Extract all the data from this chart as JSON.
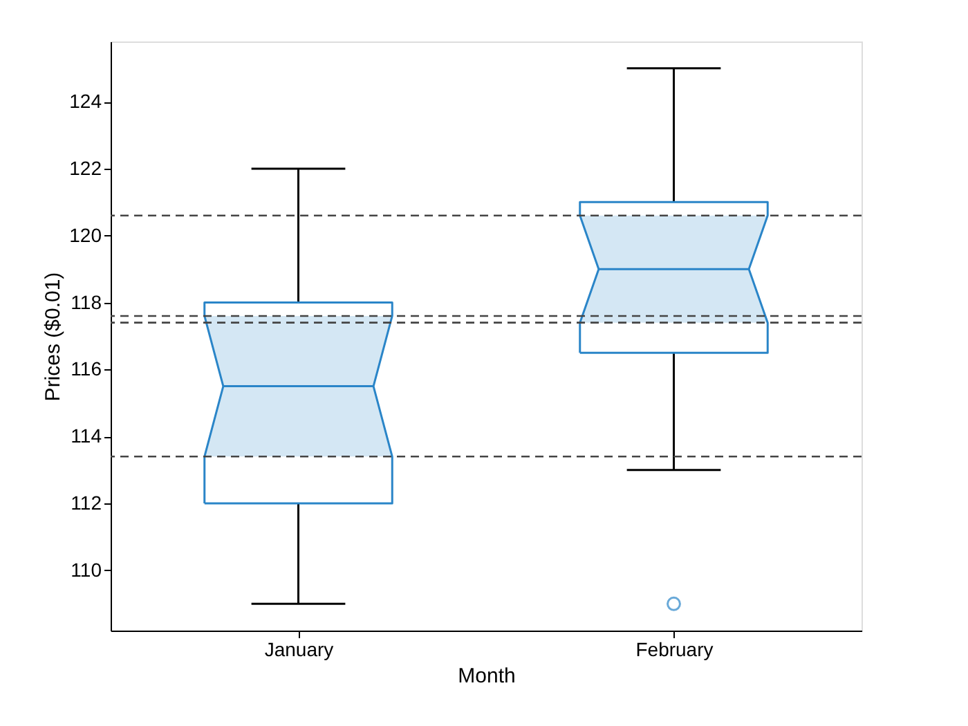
{
  "chart_data": {
    "type": "box",
    "xlabel": "Month",
    "ylabel": "Prices ($0.01)",
    "categories": [
      "January",
      "February"
    ],
    "series": [
      {
        "color": "#2a85c8",
        "boxes": [
          {
            "low": 109,
            "q1": 112,
            "median": 115.5,
            "q3": 118,
            "high": 122
          },
          {
            "low": 113,
            "q1": 116.5,
            "median": 119,
            "q3": 121,
            "high": 125,
            "outliers": [
              109
            ]
          }
        ]
      }
    ],
    "ylim": [
      108.2,
      125.8
    ],
    "yticks": [
      110,
      112,
      114,
      116,
      118,
      120,
      122,
      124
    ],
    "ref_lines": [
      {
        "axis": "y",
        "value": 113.4,
        "color": "#444444",
        "line_style": "dashed"
      },
      {
        "axis": "y",
        "value": 117.6,
        "color": "#444444",
        "line_style": "dashed"
      },
      {
        "axis": "y",
        "value": 117.4,
        "color": "#444444",
        "line_style": "dashed"
      },
      {
        "axis": "y",
        "value": 120.6,
        "color": "#444444",
        "line_style": "dashed"
      }
    ],
    "grid": false
  }
}
